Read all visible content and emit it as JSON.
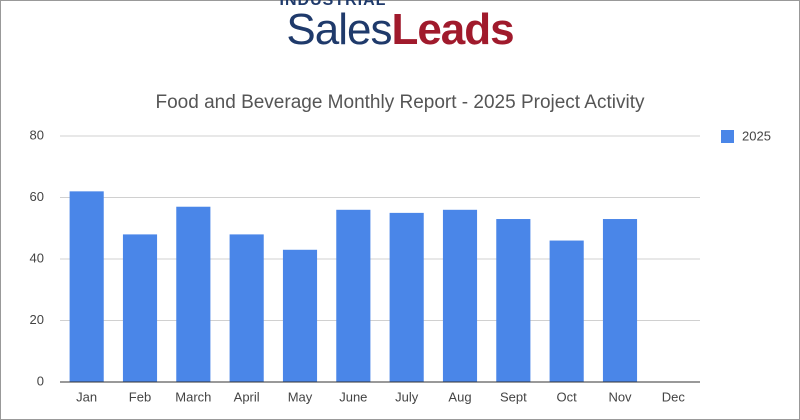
{
  "logo": {
    "tagline": "INDUSTRIAL",
    "brand_first": "Sales",
    "brand_second": "Leads"
  },
  "chart_data": {
    "type": "bar",
    "title": "Food and Beverage Monthly Report - 2025 Project Activity",
    "categories": [
      "Jan",
      "Feb",
      "March",
      "April",
      "May",
      "June",
      "July",
      "Aug",
      "Sept",
      "Oct",
      "Nov",
      "Dec"
    ],
    "series": [
      {
        "name": "2025",
        "color": "#4a86e8",
        "values": [
          62,
          48,
          57,
          48,
          43,
          56,
          55,
          56,
          53,
          46,
          53,
          null
        ]
      }
    ],
    "ylim": [
      0,
      80
    ],
    "yticks": [
      0,
      20,
      40,
      60,
      80
    ],
    "grid": true,
    "legend": "right"
  }
}
